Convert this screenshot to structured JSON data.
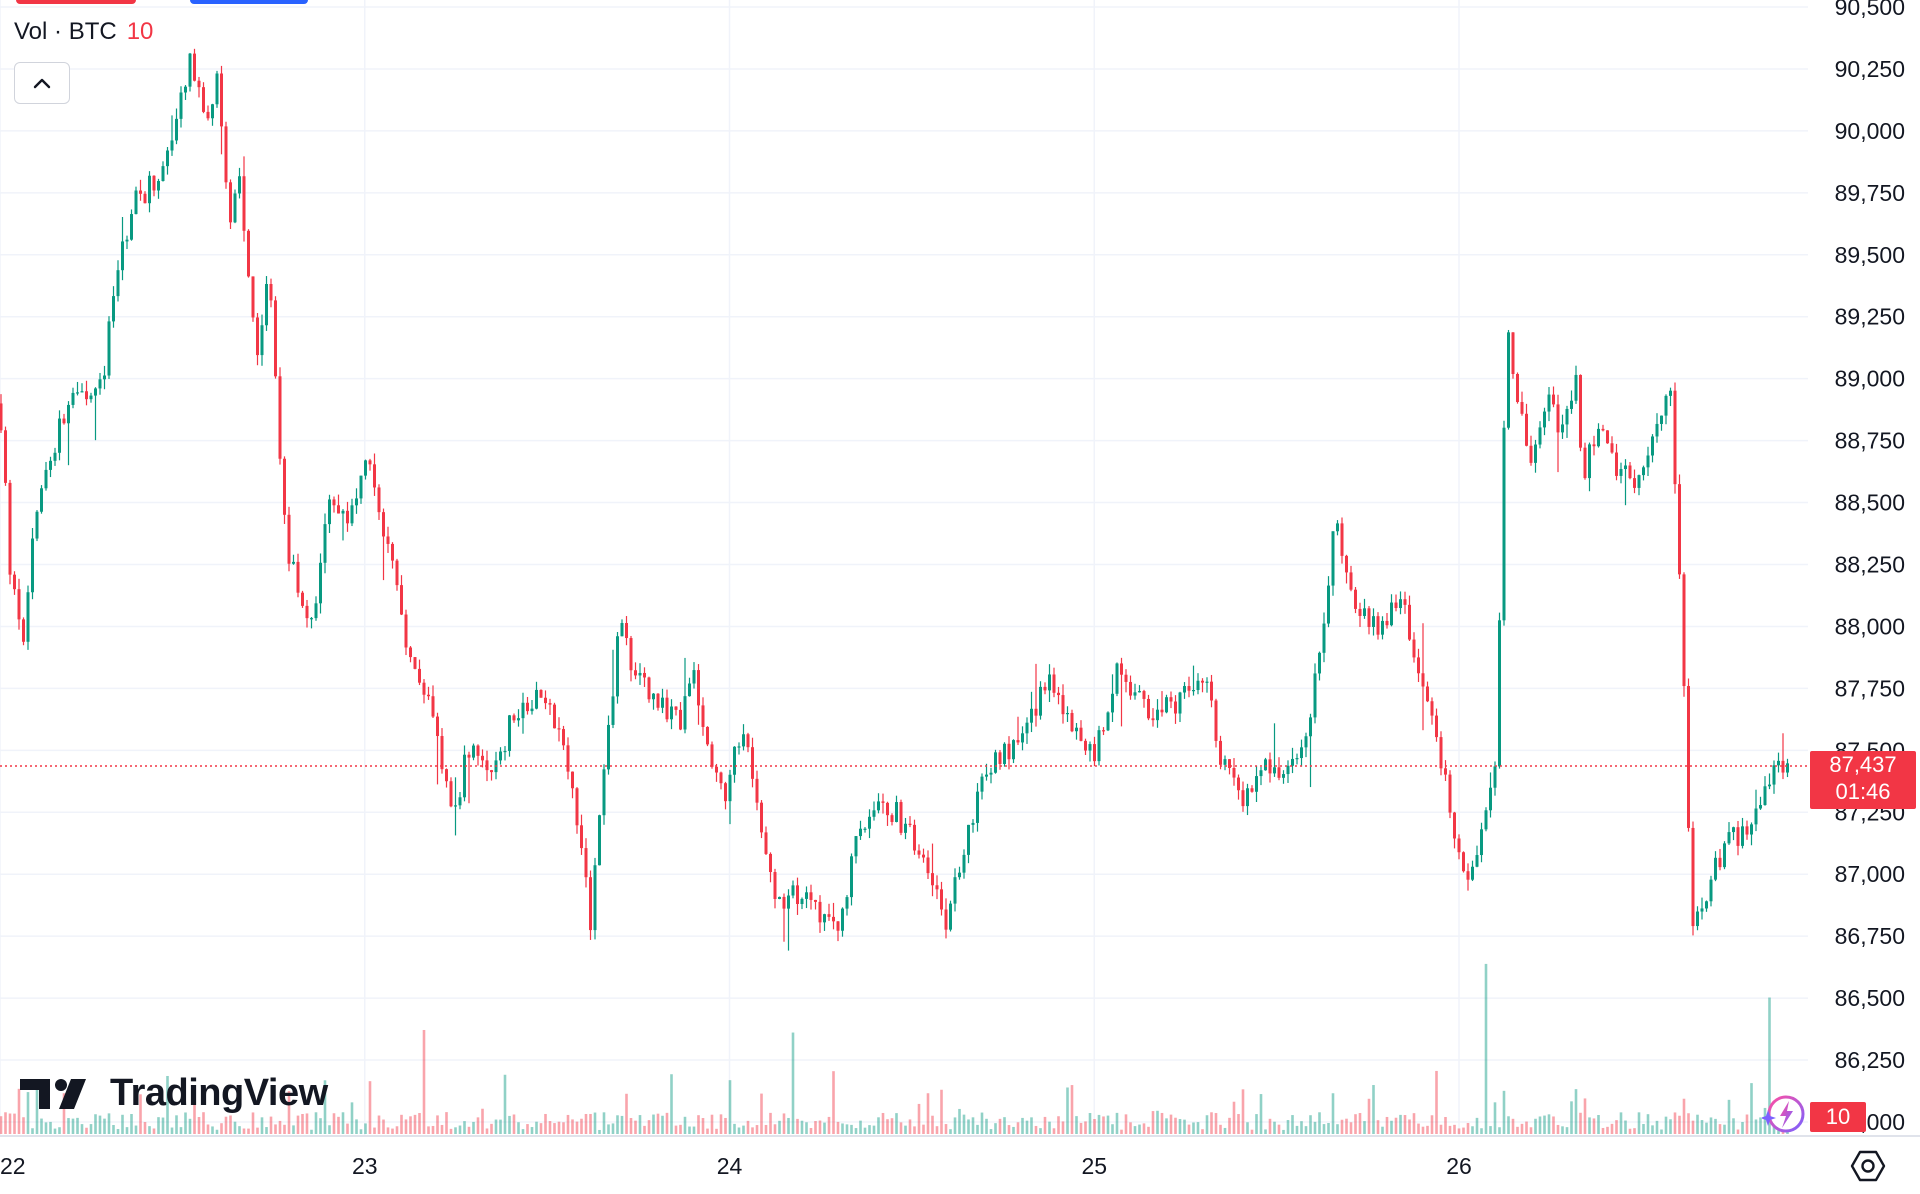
{
  "legend": {
    "title": "Vol · BTC",
    "value": "10"
  },
  "brand": "TradingView",
  "price_label": {
    "price": "87,437",
    "countdown": "01:46"
  },
  "volume_label": "10",
  "colors": {
    "up": "#089981",
    "down": "#f23645",
    "grid": "#f0f3fa",
    "text": "#131722",
    "price_tag": "#f23645"
  },
  "icons": [
    "chevron-up-icon",
    "tradingview-logo-icon",
    "lightning-icon",
    "settings-icon"
  ],
  "chart_data": {
    "type": "candlestick",
    "symbol": "BTC",
    "y_ticks": [
      "90,500",
      "90,250",
      "90,000",
      "89,750",
      "89,500",
      "89,250",
      "89,000",
      "88,750",
      "88,500",
      "88,250",
      "88,000",
      "87,750",
      "87,500",
      "87,250",
      "87,000",
      "86,750",
      "86,500",
      "86,250",
      "86,000"
    ],
    "y_tick_values": [
      90500,
      90250,
      90000,
      89750,
      89500,
      89250,
      89000,
      88750,
      88500,
      88250,
      88000,
      87750,
      87500,
      87250,
      87000,
      86750,
      86500,
      86250,
      86000
    ],
    "ylim": [
      86000,
      90500
    ],
    "x_ticks": [
      {
        "label": "22",
        "day": 22
      },
      {
        "label": "23",
        "day": 23
      },
      {
        "label": "24",
        "day": 24
      },
      {
        "label": "25",
        "day": 25
      },
      {
        "label": "26",
        "day": 26
      }
    ],
    "xlim_days": [
      22.0,
      26.88
    ],
    "last_price": 87437,
    "price_path": [
      [
        22.0,
        88900
      ],
      [
        22.03,
        88200
      ],
      [
        22.06,
        87900
      ],
      [
        22.1,
        88500
      ],
      [
        22.16,
        88800
      ],
      [
        22.22,
        88950
      ],
      [
        22.28,
        89000
      ],
      [
        22.32,
        89400
      ],
      [
        22.36,
        89700
      ],
      [
        22.42,
        89800
      ],
      [
        22.48,
        90000
      ],
      [
        22.52,
        90300
      ],
      [
        22.56,
        90050
      ],
      [
        22.6,
        90200
      ],
      [
        22.63,
        89600
      ],
      [
        22.66,
        89800
      ],
      [
        22.7,
        89100
      ],
      [
        22.74,
        89400
      ],
      [
        22.78,
        88400
      ],
      [
        22.82,
        88100
      ],
      [
        22.86,
        88000
      ],
      [
        22.9,
        88500
      ],
      [
        22.95,
        88400
      ],
      [
        23.0,
        88700
      ],
      [
        23.03,
        88500
      ],
      [
        23.08,
        88300
      ],
      [
        23.12,
        87900
      ],
      [
        23.18,
        87700
      ],
      [
        23.24,
        87200
      ],
      [
        23.28,
        87500
      ],
      [
        23.34,
        87400
      ],
      [
        23.4,
        87600
      ],
      [
        23.45,
        87700
      ],
      [
        23.5,
        87700
      ],
      [
        23.56,
        87400
      ],
      [
        23.62,
        86800
      ],
      [
        23.66,
        87500
      ],
      [
        23.7,
        88000
      ],
      [
        23.74,
        87800
      ],
      [
        23.8,
        87700
      ],
      [
        23.86,
        87600
      ],
      [
        23.9,
        87800
      ],
      [
        23.94,
        87500
      ],
      [
        23.98,
        87300
      ],
      [
        24.04,
        87600
      ],
      [
        24.08,
        87200
      ],
      [
        24.12,
        86900
      ],
      [
        24.18,
        86900
      ],
      [
        24.24,
        86850
      ],
      [
        24.3,
        86800
      ],
      [
        24.36,
        87200
      ],
      [
        24.42,
        87300
      ],
      [
        24.48,
        87200
      ],
      [
        24.54,
        87000
      ],
      [
        24.6,
        86800
      ],
      [
        24.64,
        87100
      ],
      [
        24.7,
        87400
      ],
      [
        24.76,
        87500
      ],
      [
        24.82,
        87600
      ],
      [
        24.88,
        87800
      ],
      [
        24.94,
        87600
      ],
      [
        25.0,
        87500
      ],
      [
        25.06,
        87800
      ],
      [
        25.12,
        87700
      ],
      [
        25.18,
        87650
      ],
      [
        25.24,
        87700
      ],
      [
        25.3,
        87800
      ],
      [
        25.36,
        87400
      ],
      [
        25.42,
        87300
      ],
      [
        25.48,
        87450
      ],
      [
        25.54,
        87400
      ],
      [
        25.6,
        87700
      ],
      [
        25.66,
        88400
      ],
      [
        25.72,
        88100
      ],
      [
        25.78,
        88000
      ],
      [
        25.84,
        88100
      ],
      [
        25.88,
        87900
      ],
      [
        25.92,
        87700
      ],
      [
        25.96,
        87400
      ],
      [
        25.99,
        87100
      ],
      [
        26.03,
        86950
      ],
      [
        26.07,
        87200
      ],
      [
        26.1,
        87400
      ],
      [
        26.13,
        89200
      ],
      [
        26.16,
        88900
      ],
      [
        26.2,
        88700
      ],
      [
        26.24,
        88900
      ],
      [
        26.28,
        88800
      ],
      [
        26.32,
        89000
      ],
      [
        26.34,
        88600
      ],
      [
        26.38,
        88800
      ],
      [
        26.44,
        88600
      ],
      [
        26.5,
        88600
      ],
      [
        26.54,
        88850
      ],
      [
        26.58,
        88950
      ],
      [
        26.6,
        88400
      ],
      [
        26.62,
        87600
      ],
      [
        26.64,
        86800
      ],
      [
        26.68,
        86900
      ],
      [
        26.72,
        87100
      ],
      [
        26.76,
        87150
      ],
      [
        26.8,
        87200
      ],
      [
        26.84,
        87350
      ],
      [
        26.88,
        87437
      ]
    ]
  }
}
